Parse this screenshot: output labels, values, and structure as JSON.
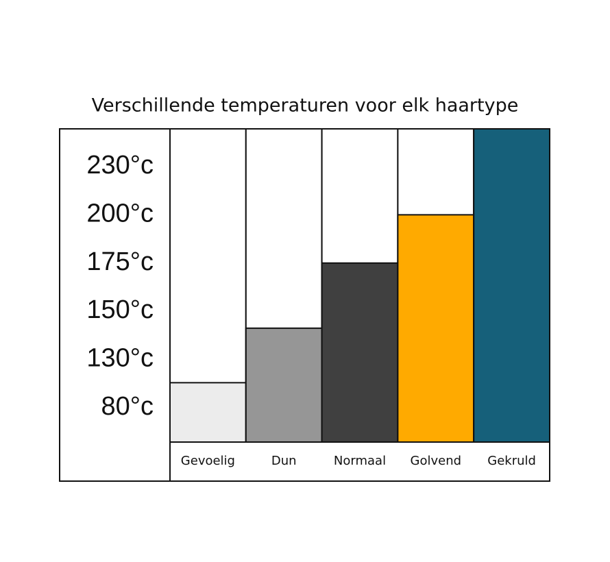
{
  "chart_data": {
    "type": "bar",
    "title": "Verschillende temperaturen voor elk haartype",
    "categories": [
      "Gevoelig",
      "Dun",
      "Normaal",
      "Golvend",
      "Gekruld"
    ],
    "values": [
      106,
      143,
      175,
      200,
      254
    ],
    "colors": [
      "#ececec",
      "#969696",
      "#404040",
      "#ffaa00",
      "#16607a"
    ],
    "ylim": [
      45,
      254
    ],
    "yticks": [
      {
        "value": 80,
        "label": "80°c"
      },
      {
        "value": 130,
        "label": "130°c"
      },
      {
        "value": 150,
        "label": "150°c"
      },
      {
        "value": 175,
        "label": "175°c"
      },
      {
        "value": 200,
        "label": "200°c"
      },
      {
        "value": 230,
        "label": "230°c"
      }
    ]
  }
}
